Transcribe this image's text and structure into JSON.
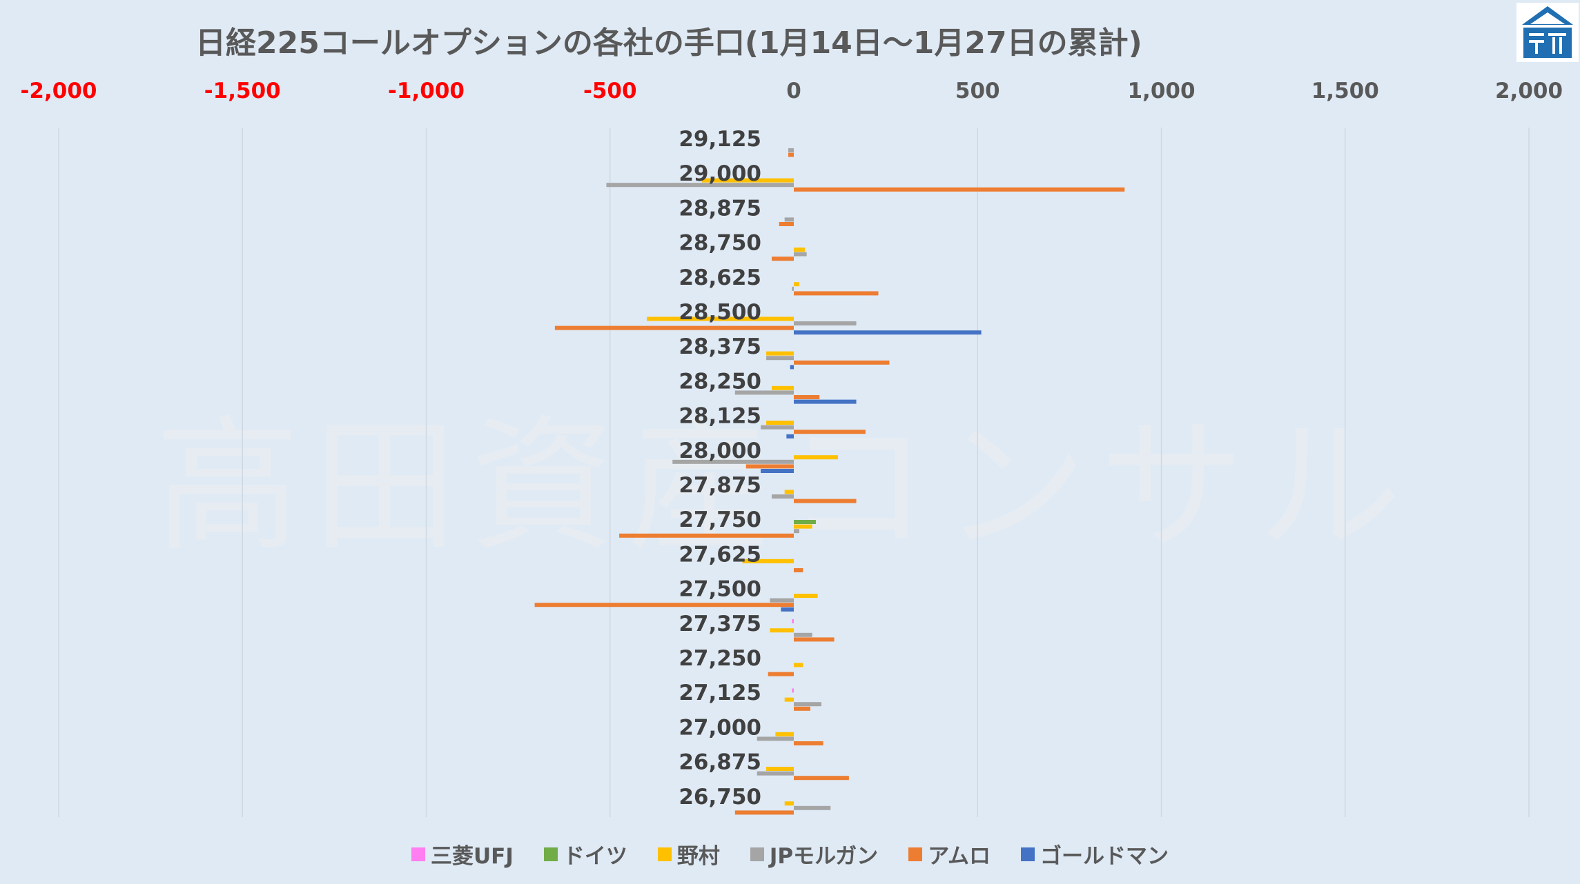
{
  "chart_data": {
    "type": "bar",
    "orientation": "horizontal",
    "title": "日経225コールオプションの各社の手口(1月14日～1月27日の累計)",
    "watermark": "高田資産コンサル",
    "xlim": [
      -2000,
      2000
    ],
    "x_ticks": [
      -2000,
      -1500,
      -1000,
      -500,
      0,
      500,
      1000,
      1500,
      2000
    ],
    "x_tick_labels": [
      "-2,000",
      "-1,500",
      "-1,000",
      "-500",
      "0",
      "500",
      "1,000",
      "1,500",
      "2,000"
    ],
    "x_axis_position": "top",
    "negative_tick_color": "#ff0000",
    "positive_tick_color": "#595959",
    "gridlines": "vertical",
    "legend_position": "bottom",
    "categories": [
      "29,125",
      "29,000",
      "28,875",
      "28,750",
      "28,625",
      "28,500",
      "28,375",
      "28,250",
      "28,125",
      "28,000",
      "27,875",
      "27,750",
      "27,625",
      "27,500",
      "27,375",
      "27,250",
      "27,125",
      "27,000",
      "26,875",
      "26,750"
    ],
    "series": [
      {
        "name": "三菱UFJ",
        "color": "#ff7ef0",
        "values": [
          0,
          0,
          0,
          0,
          0,
          0,
          0,
          0,
          0,
          0,
          0,
          0,
          0,
          0,
          -5,
          0,
          -5,
          0,
          0,
          0
        ]
      },
      {
        "name": "ドイツ",
        "color": "#70ad47",
        "values": [
          0,
          0,
          0,
          0,
          0,
          0,
          0,
          0,
          0,
          0,
          0,
          60,
          0,
          0,
          0,
          0,
          0,
          0,
          0,
          0
        ]
      },
      {
        "name": "野村",
        "color": "#ffc000",
        "values": [
          0,
          -250,
          0,
          30,
          15,
          -400,
          -75,
          -60,
          -75,
          120,
          -25,
          50,
          -140,
          65,
          -65,
          25,
          -25,
          -50,
          -75,
          -25
        ]
      },
      {
        "name": "JPモルガン",
        "color": "#a5a5a5",
        "values": [
          -15,
          -510,
          -25,
          35,
          -5,
          170,
          -75,
          -160,
          -90,
          -330,
          -60,
          15,
          0,
          -65,
          50,
          0,
          75,
          -100,
          -100,
          100
        ]
      },
      {
        "name": "アムロ",
        "color": "#ed7d31",
        "values": [
          -15,
          900,
          -40,
          -60,
          230,
          -650,
          260,
          70,
          195,
          -130,
          170,
          -475,
          25,
          -705,
          110,
          -70,
          45,
          80,
          150,
          -160
        ]
      },
      {
        "name": "ゴールドマン",
        "color": "#4472c4",
        "values": [
          0,
          0,
          0,
          0,
          0,
          510,
          -10,
          170,
          -20,
          -90,
          0,
          0,
          0,
          -35,
          0,
          0,
          0,
          0,
          0,
          0
        ]
      }
    ]
  }
}
